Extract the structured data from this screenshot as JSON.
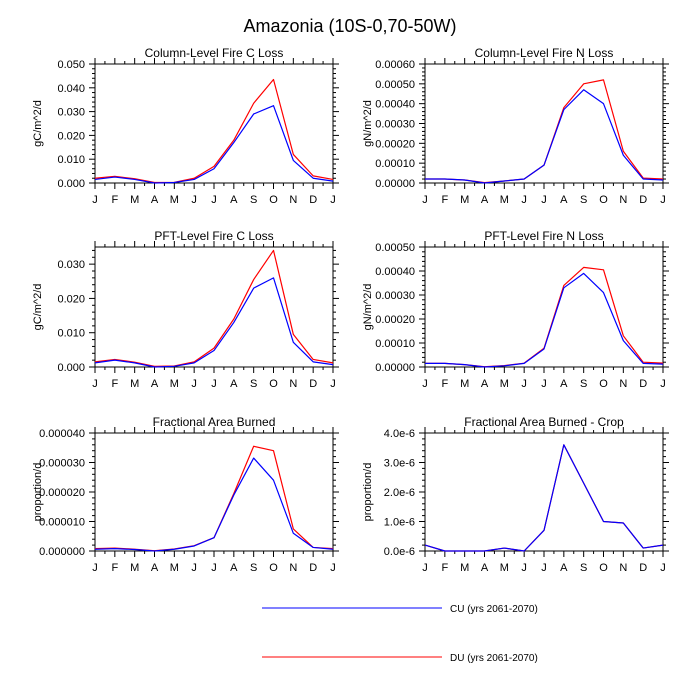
{
  "title": "Amazonia (10S-0,70-50W)",
  "colors": {
    "cu": "#0000ff",
    "du": "#ff0000",
    "frame": "#000000"
  },
  "legend": [
    {
      "label": "CU (yrs 2061-2070)",
      "color": "#0000ff"
    },
    {
      "label": "DU (yrs 2061-2070)",
      "color": "#ff0000"
    }
  ],
  "chart_data": [
    {
      "type": "line",
      "title": "Column-Level Fire C Loss",
      "ylabel": "gC/m^2/d",
      "categories": [
        "J",
        "F",
        "M",
        "A",
        "M",
        "J",
        "J",
        "A",
        "S",
        "O",
        "N",
        "D",
        "J"
      ],
      "ylim": [
        0,
        0.05
      ],
      "yticks": [
        0,
        0.01,
        0.02,
        0.03,
        0.04,
        0.05
      ],
      "ytick_labels": [
        "0.000",
        "0.010",
        "0.020",
        "0.030",
        "0.040",
        "0.050"
      ],
      "series": [
        {
          "name": "CU (yrs 2061-2070)",
          "values": [
            0.0015,
            0.0025,
            0.0015,
            0.0,
            0.0002,
            0.0015,
            0.006,
            0.017,
            0.029,
            0.0325,
            0.0095,
            0.002,
            0.0008
          ]
        },
        {
          "name": "DU (yrs 2061-2070)",
          "values": [
            0.002,
            0.0028,
            0.0018,
            0.0002,
            0.0003,
            0.002,
            0.007,
            0.018,
            0.0335,
            0.0435,
            0.012,
            0.003,
            0.0015
          ]
        }
      ]
    },
    {
      "type": "line",
      "title": "Column-Level Fire N Loss",
      "ylabel": "gN/m^2/d",
      "categories": [
        "J",
        "F",
        "M",
        "A",
        "M",
        "J",
        "J",
        "A",
        "S",
        "O",
        "N",
        "D",
        "J"
      ],
      "ylim": [
        0,
        0.0006
      ],
      "yticks": [
        0,
        0.0001,
        0.0002,
        0.0003,
        0.0004,
        0.0005,
        0.0006
      ],
      "ytick_labels": [
        "0.00000",
        "0.00010",
        "0.00020",
        "0.00030",
        "0.00040",
        "0.00050",
        "0.00060"
      ],
      "series": [
        {
          "name": "CU (yrs 2061-2070)",
          "values": [
            2e-05,
            2e-05,
            1.5e-05,
            0.0,
            1e-05,
            2e-05,
            9e-05,
            0.00037,
            0.00047,
            0.0004,
            0.00014,
            2e-05,
            1.5e-05
          ]
        },
        {
          "name": "DU (yrs 2061-2070)",
          "values": [
            2e-05,
            2e-05,
            1.5e-05,
            2e-06,
            1e-05,
            2e-05,
            9e-05,
            0.00038,
            0.0005,
            0.00052,
            0.00016,
            2.5e-05,
            2e-05
          ]
        }
      ]
    },
    {
      "type": "line",
      "title": "PFT-Level Fire C Loss",
      "ylabel": "gC/m^2/d",
      "categories": [
        "J",
        "F",
        "M",
        "A",
        "M",
        "J",
        "J",
        "A",
        "S",
        "O",
        "N",
        "D",
        "J"
      ],
      "ylim": [
        0,
        0.035
      ],
      "yticks": [
        0,
        0.01,
        0.02,
        0.03
      ],
      "ytick_labels": [
        "0.000",
        "0.010",
        "0.020",
        "0.030"
      ],
      "series": [
        {
          "name": "CU (yrs 2061-2070)",
          "values": [
            0.0012,
            0.002,
            0.0012,
            0.0,
            0.0002,
            0.0012,
            0.0048,
            0.013,
            0.023,
            0.026,
            0.0072,
            0.0015,
            0.0007
          ]
        },
        {
          "name": "DU (yrs 2061-2070)",
          "values": [
            0.0015,
            0.0022,
            0.0014,
            0.0002,
            0.0003,
            0.0015,
            0.0055,
            0.014,
            0.0255,
            0.034,
            0.0095,
            0.0022,
            0.0012
          ]
        }
      ]
    },
    {
      "type": "line",
      "title": "PFT-Level Fire N Loss",
      "ylabel": "gN/m^2/d",
      "categories": [
        "J",
        "F",
        "M",
        "A",
        "M",
        "J",
        "J",
        "A",
        "S",
        "O",
        "N",
        "D",
        "J"
      ],
      "ylim": [
        0,
        0.0005
      ],
      "yticks": [
        0,
        0.0001,
        0.0002,
        0.0003,
        0.0004,
        0.0005
      ],
      "ytick_labels": [
        "0.00000",
        "0.00010",
        "0.00020",
        "0.00030",
        "0.00040",
        "0.00050"
      ],
      "series": [
        {
          "name": "CU (yrs 2061-2070)",
          "values": [
            1.5e-05,
            1.5e-05,
            1e-05,
            0.0,
            5e-06,
            1.5e-05,
            7.5e-05,
            0.00033,
            0.00039,
            0.00031,
            0.00011,
            1.5e-05,
            1.2e-05
          ]
        },
        {
          "name": "DU (yrs 2061-2070)",
          "values": [
            1.5e-05,
            1.5e-05,
            1e-05,
            1e-06,
            6e-06,
            1.6e-05,
            7.8e-05,
            0.00034,
            0.000415,
            0.000405,
            0.00013,
            2e-05,
            1.6e-05
          ]
        }
      ]
    },
    {
      "type": "line",
      "title": "Fractional Area Burned",
      "ylabel": "proportion/d",
      "categories": [
        "J",
        "F",
        "M",
        "A",
        "M",
        "J",
        "J",
        "A",
        "S",
        "O",
        "N",
        "D",
        "J"
      ],
      "ylim": [
        0,
        4e-05
      ],
      "yticks": [
        0,
        1e-05,
        2e-05,
        3e-05,
        4e-05
      ],
      "ytick_labels": [
        "0.000000",
        "0.000010",
        "0.000020",
        "0.000030",
        "0.000040"
      ],
      "series": [
        {
          "name": "CU (yrs 2061-2070)",
          "values": [
            6e-07,
            8e-07,
            5e-07,
            0.0,
            6e-07,
            1.7e-06,
            4.5e-06,
            1.9e-05,
            3.15e-05,
            2.4e-05,
            6e-06,
            1.2e-06,
            6e-07
          ]
        },
        {
          "name": "DU (yrs 2061-2070)",
          "values": [
            8e-07,
            1e-06,
            6e-07,
            1e-07,
            7e-07,
            1.8e-06,
            4.5e-06,
            1.95e-05,
            3.55e-05,
            3.4e-05,
            7.5e-06,
            1.2e-06,
            8e-07
          ]
        }
      ]
    },
    {
      "type": "line",
      "title": "Fractional Area Burned - Crop",
      "ylabel": "proportion/d",
      "categories": [
        "J",
        "F",
        "M",
        "A",
        "M",
        "J",
        "J",
        "A",
        "S",
        "O",
        "N",
        "D",
        "J"
      ],
      "ylim": [
        0,
        4e-06
      ],
      "yticks": [
        0,
        1e-06,
        2e-06,
        3e-06,
        4e-06
      ],
      "ytick_labels": [
        "0.0e-6",
        "1.0e-6",
        "2.0e-6",
        "3.0e-6",
        "4.0e-6"
      ],
      "series": [
        {
          "name": "CU (yrs 2061-2070)",
          "values": [
            2e-07,
            0.0,
            0.0,
            0.0,
            1e-07,
            0.0,
            7e-07,
            3.6e-06,
            2.3e-06,
            1e-06,
            9.5e-07,
            1e-07,
            2e-07
          ]
        },
        {
          "name": "DU (yrs 2061-2070)",
          "values": [
            2e-07,
            0.0,
            0.0,
            0.0,
            1e-07,
            0.0,
            7e-07,
            3.6e-06,
            2.3e-06,
            1e-06,
            9.5e-07,
            1e-07,
            2e-07
          ]
        }
      ]
    }
  ]
}
